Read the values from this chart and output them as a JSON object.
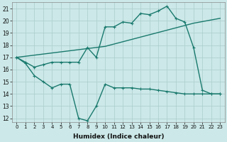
{
  "xlabel": "Humidex (Indice chaleur)",
  "xlim": [
    -0.5,
    23.5
  ],
  "ylim": [
    11.7,
    21.5
  ],
  "yticks": [
    12,
    13,
    14,
    15,
    16,
    17,
    18,
    19,
    20,
    21
  ],
  "xticks": [
    0,
    1,
    2,
    3,
    4,
    5,
    6,
    7,
    8,
    9,
    10,
    11,
    12,
    13,
    14,
    15,
    16,
    17,
    18,
    19,
    20,
    21,
    22,
    23
  ],
  "bg_color": "#cce8e8",
  "line_color": "#1a7a6e",
  "line1_x": [
    0,
    1,
    2,
    3,
    4,
    5,
    6,
    7,
    8,
    9,
    10,
    11,
    12,
    13,
    14,
    15,
    16,
    17,
    18,
    19,
    20,
    21,
    22,
    23
  ],
  "line1_y": [
    17.0,
    16.6,
    16.2,
    16.4,
    16.6,
    16.6,
    16.6,
    16.6,
    17.8,
    17.0,
    19.5,
    19.5,
    19.9,
    19.8,
    20.6,
    20.5,
    20.8,
    21.2,
    20.2,
    19.9,
    17.8,
    14.3,
    14.0,
    14.0
  ],
  "line2_x": [
    0,
    10,
    20,
    23
  ],
  "line2_y": [
    17.0,
    17.9,
    19.8,
    20.2
  ],
  "line3_x": [
    0,
    1,
    2,
    3,
    4,
    5,
    6,
    7,
    8,
    9,
    10,
    11,
    12,
    13,
    14,
    15,
    16,
    17,
    18,
    19,
    20,
    21,
    22,
    23
  ],
  "line3_y": [
    17.0,
    16.5,
    15.5,
    15.0,
    14.5,
    14.8,
    14.8,
    12.0,
    11.8,
    13.0,
    14.8,
    14.5,
    14.5,
    14.5,
    14.4,
    14.4,
    14.3,
    14.2,
    14.1,
    14.0,
    14.0,
    14.0,
    14.0,
    14.0
  ]
}
